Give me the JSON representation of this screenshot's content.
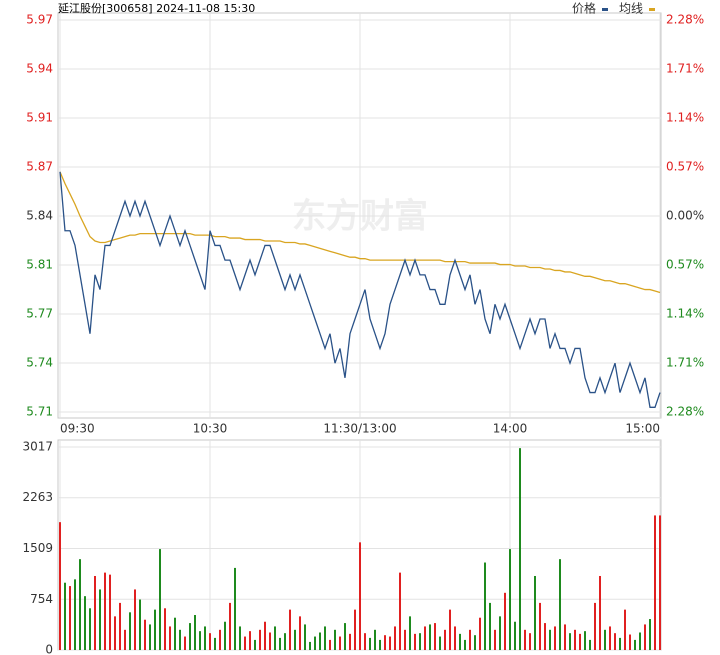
{
  "chart_data": [
    {
      "type": "line",
      "title": "延江股份[300658] 2024-11-08 15:30",
      "watermark": "东方财富",
      "categories": [
        "09:30",
        null,
        null,
        null,
        null,
        null,
        null,
        null,
        null,
        null,
        null,
        null,
        null,
        null,
        null,
        null,
        null,
        null,
        null,
        null,
        null,
        null,
        null,
        null,
        null,
        null,
        null,
        null,
        null,
        null,
        "10:30",
        null,
        null,
        null,
        null,
        null,
        null,
        null,
        null,
        null,
        null,
        null,
        null,
        null,
        null,
        null,
        null,
        null,
        null,
        null,
        null,
        null,
        null,
        null,
        null,
        null,
        null,
        null,
        null,
        null,
        "11:30/13:00",
        null,
        null,
        null,
        null,
        null,
        null,
        null,
        null,
        null,
        null,
        null,
        null,
        null,
        null,
        null,
        null,
        null,
        null,
        null,
        null,
        null,
        null,
        null,
        null,
        null,
        null,
        null,
        null,
        null,
        "14:00",
        null,
        null,
        null,
        null,
        null,
        null,
        null,
        null,
        null,
        null,
        null,
        null,
        null,
        null,
        null,
        null,
        null,
        null,
        null,
        null,
        null,
        null,
        null,
        null,
        null,
        null,
        null,
        null,
        null,
        "15:00"
      ],
      "series": [
        {
          "name": "价格",
          "color": "#2a5288",
          "values": [
            5.87,
            5.83,
            5.83,
            5.82,
            5.8,
            5.78,
            5.76,
            5.8,
            5.79,
            5.82,
            5.82,
            5.83,
            5.84,
            5.85,
            5.84,
            5.85,
            5.84,
            5.85,
            5.84,
            5.83,
            5.82,
            5.83,
            5.84,
            5.83,
            5.82,
            5.83,
            5.82,
            5.81,
            5.8,
            5.79,
            5.83,
            5.82,
            5.82,
            5.81,
            5.81,
            5.8,
            5.79,
            5.8,
            5.81,
            5.8,
            5.81,
            5.82,
            5.82,
            5.81,
            5.8,
            5.79,
            5.8,
            5.79,
            5.8,
            5.79,
            5.78,
            5.77,
            5.76,
            5.75,
            5.76,
            5.74,
            5.75,
            5.73,
            5.76,
            5.77,
            5.78,
            5.79,
            5.77,
            5.76,
            5.75,
            5.76,
            5.78,
            5.79,
            5.8,
            5.81,
            5.8,
            5.81,
            5.8,
            5.8,
            5.79,
            5.79,
            5.78,
            5.78,
            5.8,
            5.81,
            5.8,
            5.79,
            5.8,
            5.78,
            5.79,
            5.77,
            5.76,
            5.78,
            5.77,
            5.78,
            5.77,
            5.76,
            5.75,
            5.76,
            5.77,
            5.76,
            5.77,
            5.77,
            5.75,
            5.76,
            5.75,
            5.75,
            5.74,
            5.75,
            5.75,
            5.73,
            5.72,
            5.72,
            5.73,
            5.72,
            5.73,
            5.74,
            5.72,
            5.73,
            5.74,
            5.73,
            5.72,
            5.73,
            5.71,
            5.71,
            5.72
          ]
        },
        {
          "name": "均线",
          "color": "#d9a521",
          "values": [
            5.87,
            5.862,
            5.855,
            5.848,
            5.84,
            5.833,
            5.826,
            5.823,
            5.822,
            5.822,
            5.823,
            5.824,
            5.825,
            5.826,
            5.827,
            5.827,
            5.828,
            5.828,
            5.828,
            5.828,
            5.828,
            5.828,
            5.828,
            5.828,
            5.828,
            5.828,
            5.828,
            5.827,
            5.827,
            5.827,
            5.827,
            5.826,
            5.826,
            5.826,
            5.825,
            5.825,
            5.825,
            5.824,
            5.824,
            5.824,
            5.824,
            5.823,
            5.823,
            5.823,
            5.823,
            5.822,
            5.822,
            5.822,
            5.821,
            5.821,
            5.82,
            5.819,
            5.818,
            5.817,
            5.816,
            5.815,
            5.814,
            5.813,
            5.812,
            5.812,
            5.811,
            5.811,
            5.81,
            5.81,
            5.81,
            5.81,
            5.81,
            5.81,
            5.81,
            5.81,
            5.81,
            5.81,
            5.81,
            5.81,
            5.81,
            5.81,
            5.81,
            5.809,
            5.809,
            5.809,
            5.809,
            5.809,
            5.808,
            5.808,
            5.808,
            5.808,
            5.808,
            5.808,
            5.807,
            5.807,
            5.807,
            5.806,
            5.806,
            5.806,
            5.805,
            5.805,
            5.805,
            5.804,
            5.804,
            5.803,
            5.803,
            5.802,
            5.802,
            5.801,
            5.8,
            5.799,
            5.799,
            5.798,
            5.797,
            5.796,
            5.796,
            5.795,
            5.794,
            5.794,
            5.793,
            5.792,
            5.791,
            5.79,
            5.79,
            5.789,
            5.788
          ]
        }
      ],
      "ylim": [
        5.7068,
        5.9732
      ],
      "yticks": [
        {
          "value": 5.7068,
          "label": "5.71"
        },
        {
          "value": 5.7401,
          "label": "5.74"
        },
        {
          "value": 5.7734,
          "label": "5.77"
        },
        {
          "value": 5.8067,
          "label": "5.81"
        },
        {
          "value": 5.84,
          "label": "5.84"
        },
        {
          "value": 5.8733,
          "label": "5.87"
        },
        {
          "value": 5.9066,
          "label": "5.91"
        },
        {
          "value": 5.9399,
          "label": "5.94"
        },
        {
          "value": 5.9732,
          "label": "5.97"
        }
      ],
      "y2lim": [
        -2.28,
        2.28
      ],
      "y2ticks": [
        {
          "value": -2.28,
          "label": "2.28%"
        },
        {
          "value": -1.71,
          "label": "1.71%"
        },
        {
          "value": -1.14,
          "label": "1.14%"
        },
        {
          "value": -0.57,
          "label": "0.57%"
        },
        {
          "value": 0,
          "label": "0.00%"
        },
        {
          "value": 0.57,
          "label": "0.57%"
        },
        {
          "value": 1.14,
          "label": "1.14%"
        },
        {
          "value": 1.71,
          "label": "1.71%"
        },
        {
          "value": 2.28,
          "label": "2.28%"
        }
      ],
      "grid": true
    },
    {
      "type": "bar",
      "values": [
        1900,
        1000,
        950,
        1050,
        1350,
        800,
        620,
        1100,
        900,
        1150,
        1120,
        500,
        700,
        300,
        560,
        900,
        750,
        450,
        380,
        600,
        1500,
        620,
        350,
        480,
        300,
        200,
        400,
        520,
        280,
        350,
        250,
        180,
        300,
        420,
        700,
        1220,
        350,
        200,
        280,
        150,
        300,
        420,
        260,
        350,
        180,
        250,
        600,
        300,
        500,
        380,
        120,
        200,
        260,
        350,
        150,
        300,
        200,
        400,
        240,
        600,
        1600,
        250,
        180,
        300,
        150,
        220,
        200,
        350,
        1150,
        300,
        500,
        240,
        250,
        350,
        380,
        400,
        200,
        300,
        600,
        350,
        240,
        150,
        300,
        220,
        480,
        1300,
        700,
        300,
        500,
        850,
        1500,
        420,
        3000,
        300,
        250,
        1100,
        700,
        400,
        300,
        350,
        1350,
        380,
        250,
        300,
        240,
        280,
        150,
        700,
        1100,
        300,
        350,
        250,
        180,
        600,
        230,
        150,
        260,
        380,
        460,
        2000,
        2000
      ],
      "ylim": [
        0,
        3017
      ],
      "yticks": [
        0,
        754,
        1509,
        2263,
        3017
      ],
      "grid": true
    }
  ]
}
